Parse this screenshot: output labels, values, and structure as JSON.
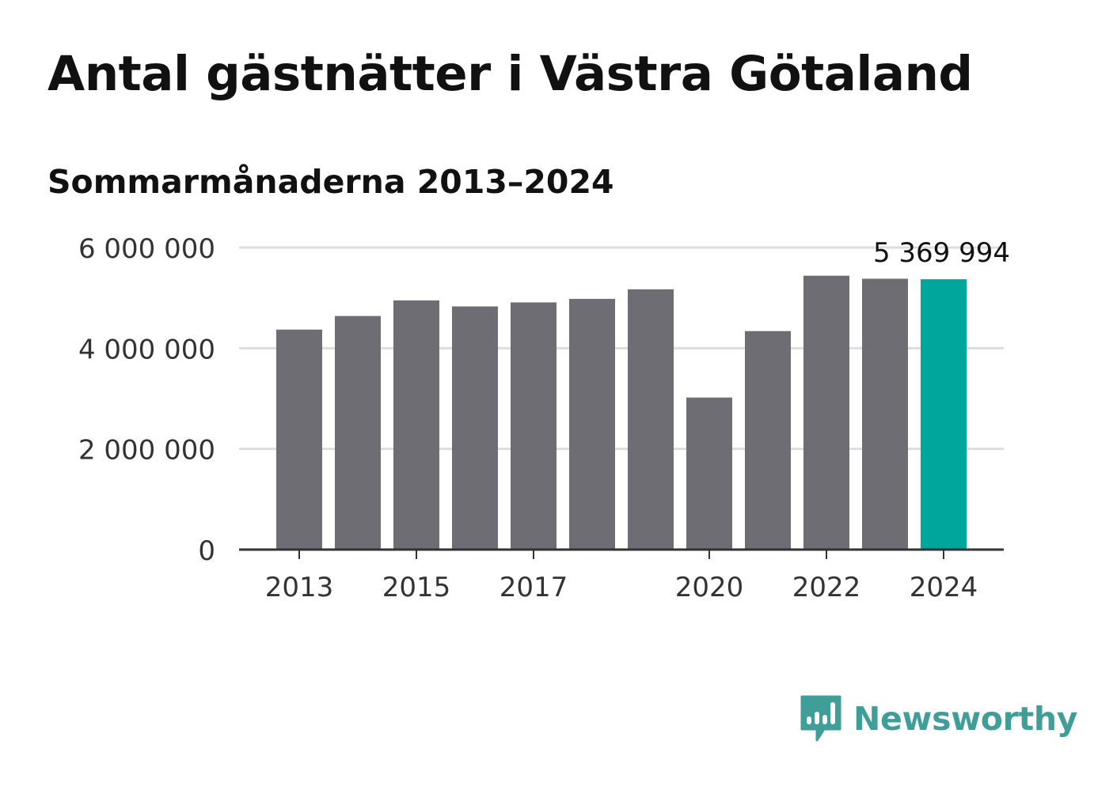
{
  "title": "Antal gästnätter i Västra Götaland",
  "subtitle": "Sommarmånaderna 2013–2024",
  "logo": {
    "text": "Newsworthy",
    "icon": "bar-chart-speech-bubble-icon",
    "color": "#3f9e98"
  },
  "colors": {
    "bar": "#6e6d73",
    "highlight": "#00a69c",
    "grid": "#dddddd",
    "axis": "#333333",
    "text": "#111111",
    "tick_text": "#333333"
  },
  "chart_data": {
    "type": "bar",
    "categories": [
      2013,
      2014,
      2015,
      2016,
      2017,
      2018,
      2019,
      2020,
      2021,
      2022,
      2023,
      2024
    ],
    "values": [
      4370000,
      4640000,
      4950000,
      4830000,
      4910000,
      4980000,
      5170000,
      3020000,
      4340000,
      5440000,
      5380000,
      5369994
    ],
    "highlight_category": 2024,
    "x_tick_labels": [
      "2013",
      "2015",
      "2017",
      "2020",
      "2022",
      "2024"
    ],
    "x_tick_categories": [
      2013,
      2015,
      2017,
      2020,
      2022,
      2024
    ],
    "y_ticks": [
      0,
      2000000,
      4000000,
      6000000
    ],
    "y_tick_labels": [
      "0",
      "2 000 000",
      "4 000 000",
      "6 000 000"
    ],
    "ylim": [
      0,
      6000000
    ],
    "data_label": "5 369 994",
    "grid": true,
    "legend": "none"
  }
}
